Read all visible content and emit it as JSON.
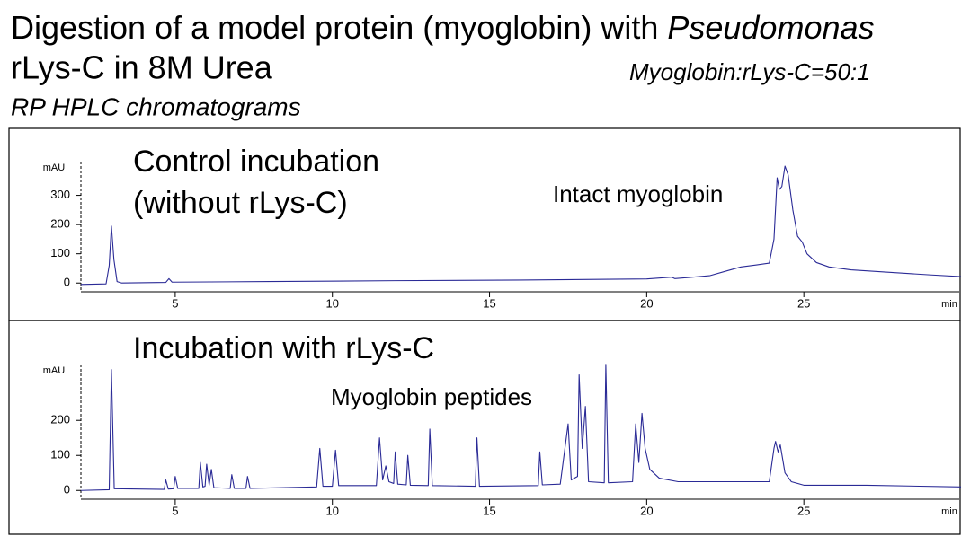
{
  "header": {
    "title": "Digestion of a model protein (myoglobin) with",
    "title_italic": "Pseudomonas",
    "title_line2": "rLys-C in 8M Urea",
    "ratio": "Myoglobin:rLys-C=50:1",
    "subtitle": "RP HPLC chromatograms"
  },
  "chart_data": [
    {
      "type": "line",
      "annotations": [
        "Control incubation",
        "(without rLys-C)",
        "Intact myoglobin"
      ],
      "y_label": "mAU",
      "x_label": "min",
      "color": "#2a2a96",
      "xlim": [
        2,
        30
      ],
      "xticks": [
        5,
        10,
        15,
        20,
        25
      ],
      "ylim": [
        -30,
        440
      ],
      "yticks": [
        0,
        100,
        200,
        300
      ],
      "x": [
        2,
        2.8,
        2.9,
        2.97,
        3.05,
        3.15,
        3.3,
        4.7,
        4.8,
        4.9,
        8,
        12,
        16,
        20,
        20.8,
        20.9,
        22,
        22.5,
        23,
        23.5,
        23.9,
        24.05,
        24.15,
        24.22,
        24.3,
        24.4,
        24.5,
        24.65,
        24.8,
        24.95,
        25.1,
        25.4,
        25.8,
        26.5,
        27.5,
        29,
        30
      ],
      "values": [
        -5,
        -3,
        60,
        195,
        80,
        5,
        0,
        2,
        15,
        3,
        5,
        8,
        10,
        14,
        20,
        15,
        25,
        40,
        55,
        62,
        68,
        150,
        360,
        320,
        330,
        400,
        370,
        250,
        160,
        140,
        100,
        70,
        55,
        45,
        38,
        28,
        22
      ]
    },
    {
      "type": "line",
      "annotations": [
        "Incubation with rLys-C",
        "Myoglobin peptides"
      ],
      "y_label": "mAU",
      "x_label": "min",
      "color": "#2a2a96",
      "xlim": [
        2,
        30
      ],
      "xticks": [
        5,
        10,
        15,
        20,
        25
      ],
      "ylim": [
        -25,
        380
      ],
      "yticks": [
        0,
        100,
        200
      ],
      "x": [
        2,
        2.9,
        2.97,
        3.06,
        4.65,
        4.7,
        4.78,
        4.95,
        5.0,
        5.08,
        5.75,
        5.8,
        5.88,
        5.95,
        6.0,
        6.08,
        6.15,
        6.23,
        6.75,
        6.8,
        6.88,
        7.25,
        7.3,
        7.38,
        9.5,
        9.6,
        9.7,
        10.0,
        10.1,
        10.2,
        11.4,
        11.5,
        11.6,
        11.7,
        11.8,
        11.95,
        12.0,
        12.08,
        12.35,
        12.4,
        12.48,
        13.05,
        13.1,
        13.18,
        14.55,
        14.6,
        14.68,
        16.55,
        16.6,
        16.68,
        17.25,
        17.5,
        17.6,
        17.8,
        17.85,
        17.95,
        18.05,
        18.15,
        18.65,
        18.7,
        18.78,
        19.55,
        19.65,
        19.75,
        19.85,
        19.95,
        20.1,
        20.4,
        21,
        23.9,
        24.05,
        24.1,
        24.18,
        24.25,
        24.4,
        24.6,
        25,
        27,
        30
      ],
      "values": [
        0,
        2,
        345,
        5,
        3,
        30,
        4,
        5,
        40,
        6,
        6,
        80,
        10,
        12,
        75,
        15,
        60,
        8,
        6,
        45,
        6,
        6,
        40,
        6,
        10,
        120,
        12,
        12,
        115,
        14,
        14,
        150,
        30,
        70,
        25,
        20,
        110,
        18,
        16,
        100,
        15,
        14,
        175,
        14,
        12,
        150,
        12,
        14,
        110,
        16,
        18,
        190,
        30,
        40,
        330,
        120,
        240,
        25,
        22,
        360,
        22,
        25,
        190,
        80,
        220,
        120,
        60,
        35,
        25,
        25,
        120,
        140,
        110,
        130,
        50,
        25,
        15,
        15,
        10
      ]
    }
  ]
}
